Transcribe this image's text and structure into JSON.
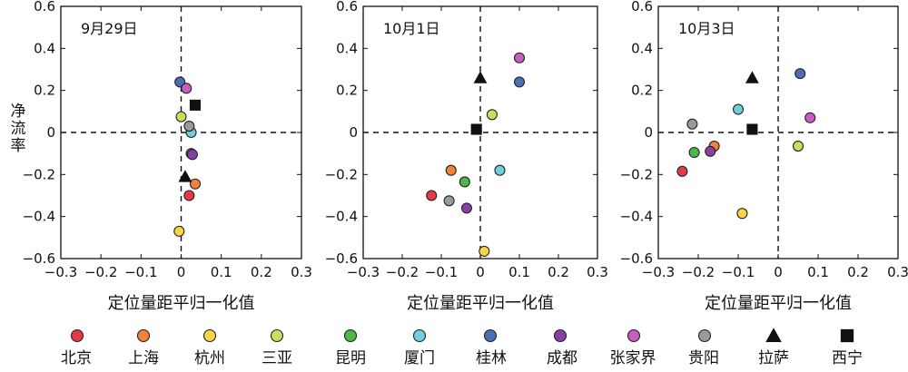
{
  "ylabel": "净流率",
  "legend": [
    {
      "name": "北京",
      "color": "#e63946",
      "marker": "circle"
    },
    {
      "name": "上海",
      "color": "#f4813a",
      "marker": "circle"
    },
    {
      "name": "杭州",
      "color": "#f7d547",
      "marker": "circle"
    },
    {
      "name": "三亚",
      "color": "#c5e05a",
      "marker": "circle"
    },
    {
      "name": "昆明",
      "color": "#4cb849",
      "marker": "circle"
    },
    {
      "name": "厦门",
      "color": "#6fd0dc",
      "marker": "circle"
    },
    {
      "name": "桂林",
      "color": "#4a6fb5",
      "marker": "circle"
    },
    {
      "name": "成都",
      "color": "#8a3fa8",
      "marker": "circle"
    },
    {
      "name": "张家界",
      "color": "#c85cc0",
      "marker": "circle"
    },
    {
      "name": "贵阳",
      "color": "#9a9a9a",
      "marker": "circle"
    },
    {
      "name": "拉萨",
      "color": "#111111",
      "marker": "triangle"
    },
    {
      "name": "西宁",
      "color": "#111111",
      "marker": "square"
    }
  ],
  "chart_data": [
    {
      "type": "scatter",
      "panel_label": "9月29日",
      "xlabel": "定位量距平归一化值",
      "xlim": [
        -0.3,
        0.3
      ],
      "ylim": [
        -0.6,
        0.6
      ],
      "xticks": [
        -0.3,
        -0.2,
        -0.1,
        0,
        0.1,
        0.2,
        0.3
      ],
      "yticks": [
        -0.6,
        -0.4,
        -0.2,
        0,
        0.2,
        0.4,
        0.6
      ],
      "points": [
        {
          "city": "北京",
          "x": 0.02,
          "y": -0.3
        },
        {
          "city": "上海",
          "x": 0.035,
          "y": -0.245
        },
        {
          "city": "杭州",
          "x": -0.005,
          "y": -0.47
        },
        {
          "city": "三亚",
          "x": 0.0,
          "y": 0.075
        },
        {
          "city": "昆明",
          "x": 0.025,
          "y": -0.1
        },
        {
          "city": "厦门",
          "x": 0.025,
          "y": 0.0
        },
        {
          "city": "桂林",
          "x": -0.003,
          "y": 0.24
        },
        {
          "city": "成都",
          "x": 0.028,
          "y": -0.105
        },
        {
          "city": "张家界",
          "x": 0.013,
          "y": 0.21
        },
        {
          "city": "贵阳",
          "x": 0.02,
          "y": 0.03
        },
        {
          "city": "拉萨",
          "x": 0.01,
          "y": -0.21
        },
        {
          "city": "西宁",
          "x": 0.035,
          "y": 0.13
        }
      ]
    },
    {
      "type": "scatter",
      "panel_label": "10月1日",
      "xlabel": "定位量距平归一化值",
      "xlim": [
        -0.3,
        0.3
      ],
      "ylim": [
        -0.6,
        0.6
      ],
      "xticks": [
        -0.3,
        -0.2,
        -0.1,
        0,
        0.1,
        0.2,
        0.3
      ],
      "yticks": [
        -0.6,
        -0.4,
        -0.2,
        0,
        0.2,
        0.4,
        0.6
      ],
      "points": [
        {
          "city": "北京",
          "x": -0.125,
          "y": -0.3
        },
        {
          "city": "上海",
          "x": -0.075,
          "y": -0.18
        },
        {
          "city": "杭州",
          "x": 0.01,
          "y": -0.565
        },
        {
          "city": "三亚",
          "x": 0.03,
          "y": 0.085
        },
        {
          "city": "昆明",
          "x": -0.04,
          "y": -0.235
        },
        {
          "city": "厦门",
          "x": 0.05,
          "y": -0.18
        },
        {
          "city": "桂林",
          "x": 0.1,
          "y": 0.24
        },
        {
          "city": "成都",
          "x": -0.035,
          "y": -0.36
        },
        {
          "city": "张家界",
          "x": 0.1,
          "y": 0.355
        },
        {
          "city": "贵阳",
          "x": -0.08,
          "y": -0.325
        },
        {
          "city": "拉萨",
          "x": 0.0,
          "y": 0.26
        },
        {
          "city": "西宁",
          "x": -0.01,
          "y": 0.015
        }
      ]
    },
    {
      "type": "scatter",
      "panel_label": "10月3日",
      "xlabel": "定位量距平归一化值",
      "xlim": [
        -0.3,
        0.3
      ],
      "ylim": [
        -0.6,
        0.6
      ],
      "xticks": [
        -0.3,
        -0.2,
        -0.1,
        0,
        0.1,
        0.2,
        0.3
      ],
      "yticks": [
        -0.6,
        -0.4,
        -0.2,
        0,
        0.2,
        0.4,
        0.6
      ],
      "points": [
        {
          "city": "北京",
          "x": -0.24,
          "y": -0.185
        },
        {
          "city": "上海",
          "x": -0.16,
          "y": -0.065
        },
        {
          "city": "杭州",
          "x": -0.09,
          "y": -0.385
        },
        {
          "city": "三亚",
          "x": 0.05,
          "y": -0.065
        },
        {
          "city": "昆明",
          "x": -0.21,
          "y": -0.095
        },
        {
          "city": "厦门",
          "x": -0.1,
          "y": 0.11
        },
        {
          "city": "桂林",
          "x": 0.055,
          "y": 0.28
        },
        {
          "city": "成都",
          "x": -0.17,
          "y": -0.09
        },
        {
          "city": "张家界",
          "x": 0.08,
          "y": 0.07
        },
        {
          "city": "贵阳",
          "x": -0.215,
          "y": 0.04
        },
        {
          "city": "拉萨",
          "x": -0.065,
          "y": 0.26
        },
        {
          "city": "西宁",
          "x": -0.065,
          "y": 0.015
        }
      ]
    }
  ]
}
